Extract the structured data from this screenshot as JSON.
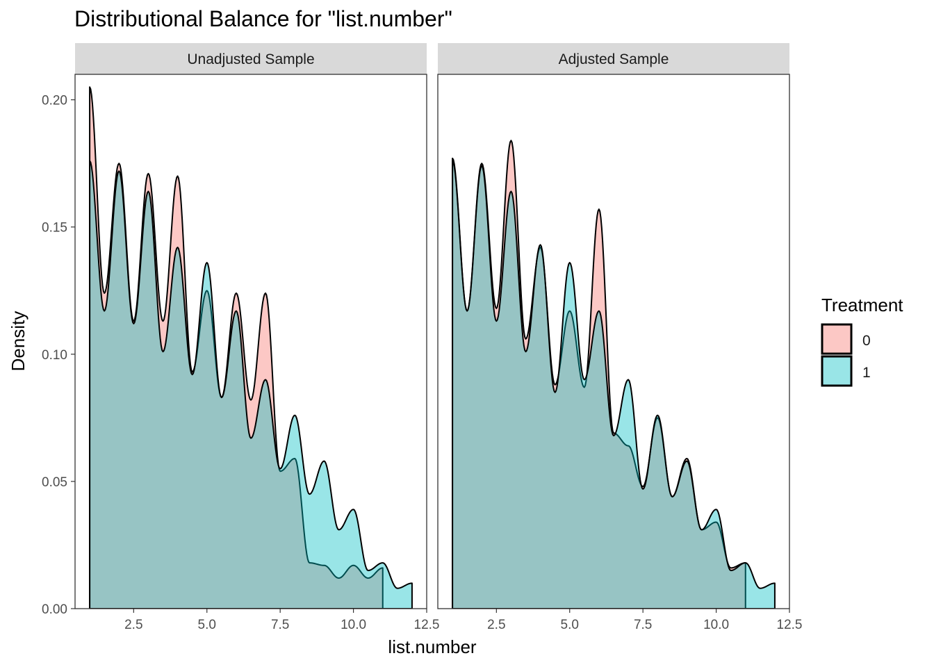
{
  "chart_data": {
    "type": "area",
    "title": "Distributional Balance for \"list.number\"",
    "xlabel": "list.number",
    "ylabel": "Density",
    "legend": {
      "title": "Treatment",
      "placement": "right",
      "entries": [
        {
          "label": "0",
          "color": "#F8766D"
        },
        {
          "label": "1",
          "color": "#00BFC4"
        }
      ]
    },
    "xlim": [
      0.5,
      12.5
    ],
    "ylim": [
      0,
      0.21
    ],
    "x_ticks": [
      2.5,
      5.0,
      7.5,
      10.0,
      12.5
    ],
    "x_tick_labels": [
      "2.5",
      "5.0",
      "7.5",
      "10.0",
      "12.5"
    ],
    "y_ticks": [
      0,
      0.05,
      0.1,
      0.15,
      0.2
    ],
    "y_tick_labels": [
      "0.00",
      "0.05",
      "0.10",
      "0.15",
      "0.20"
    ],
    "grid": false,
    "panels": [
      {
        "strip": "Unadjusted Sample",
        "x_range": [
          1,
          12
        ],
        "series": [
          {
            "name": "0",
            "color": "#F8766D",
            "x_range": [
              1,
              11
            ],
            "points": [
              [
                1,
                0.205
              ],
              [
                1.5,
                0.124
              ],
              [
                2,
                0.175
              ],
              [
                2.5,
                0.113
              ],
              [
                3,
                0.171
              ],
              [
                3.5,
                0.113
              ],
              [
                4,
                0.17
              ],
              [
                4.5,
                0.093
              ],
              [
                5,
                0.125
              ],
              [
                5.5,
                0.083
              ],
              [
                6,
                0.124
              ],
              [
                6.5,
                0.082
              ],
              [
                7,
                0.124
              ],
              [
                7.5,
                0.054
              ],
              [
                8,
                0.059
              ],
              [
                8.5,
                0.018
              ],
              [
                9,
                0.017
              ],
              [
                9.5,
                0.012
              ],
              [
                10,
                0.017
              ],
              [
                10.5,
                0.012
              ],
              [
                11,
                0.016
              ]
            ]
          },
          {
            "name": "1",
            "color": "#00BFC4",
            "x_range": [
              1,
              12
            ],
            "points": [
              [
                1,
                0.176
              ],
              [
                1.5,
                0.117
              ],
              [
                2,
                0.172
              ],
              [
                2.5,
                0.112
              ],
              [
                3,
                0.164
              ],
              [
                3.5,
                0.101
              ],
              [
                4,
                0.142
              ],
              [
                4.5,
                0.092
              ],
              [
                5,
                0.136
              ],
              [
                5.5,
                0.083
              ],
              [
                6,
                0.117
              ],
              [
                6.5,
                0.067
              ],
              [
                7,
                0.09
              ],
              [
                7.5,
                0.055
              ],
              [
                8,
                0.076
              ],
              [
                8.5,
                0.045
              ],
              [
                9,
                0.058
              ],
              [
                9.5,
                0.031
              ],
              [
                10,
                0.039
              ],
              [
                10.5,
                0.015
              ],
              [
                11,
                0.018
              ],
              [
                11.5,
                0.008
              ],
              [
                12,
                0.01
              ]
            ]
          }
        ]
      },
      {
        "strip": "Adjusted Sample",
        "x_range": [
          1,
          12
        ],
        "series": [
          {
            "name": "0",
            "color": "#F8766D",
            "x_range": [
              1,
              11
            ],
            "points": [
              [
                1,
                0.177
              ],
              [
                1.5,
                0.117
              ],
              [
                2,
                0.175
              ],
              [
                2.5,
                0.118
              ],
              [
                3,
                0.184
              ],
              [
                3.5,
                0.106
              ],
              [
                4,
                0.142
              ],
              [
                4.5,
                0.088
              ],
              [
                5,
                0.117
              ],
              [
                5.5,
                0.087
              ],
              [
                6,
                0.157
              ],
              [
                6.5,
                0.069
              ],
              [
                7,
                0.064
              ],
              [
                7.5,
                0.048
              ],
              [
                8,
                0.075
              ],
              [
                8.5,
                0.044
              ],
              [
                9,
                0.059
              ],
              [
                9.5,
                0.031
              ],
              [
                10,
                0.034
              ],
              [
                10.5,
                0.016
              ],
              [
                11,
                0.018
              ]
            ]
          },
          {
            "name": "1",
            "color": "#00BFC4",
            "x_range": [
              1,
              12
            ],
            "points": [
              [
                1,
                0.176
              ],
              [
                1.5,
                0.117
              ],
              [
                2,
                0.174
              ],
              [
                2.5,
                0.113
              ],
              [
                3,
                0.164
              ],
              [
                3.5,
                0.101
              ],
              [
                4,
                0.143
              ],
              [
                4.5,
                0.085
              ],
              [
                5,
                0.136
              ],
              [
                5.5,
                0.09
              ],
              [
                6,
                0.117
              ],
              [
                6.5,
                0.068
              ],
              [
                7,
                0.09
              ],
              [
                7.5,
                0.047
              ],
              [
                8,
                0.076
              ],
              [
                8.5,
                0.044
              ],
              [
                9,
                0.058
              ],
              [
                9.5,
                0.031
              ],
              [
                10,
                0.039
              ],
              [
                10.5,
                0.015
              ],
              [
                11,
                0.018
              ],
              [
                11.5,
                0.008
              ],
              [
                12,
                0.01
              ]
            ]
          }
        ]
      }
    ]
  }
}
